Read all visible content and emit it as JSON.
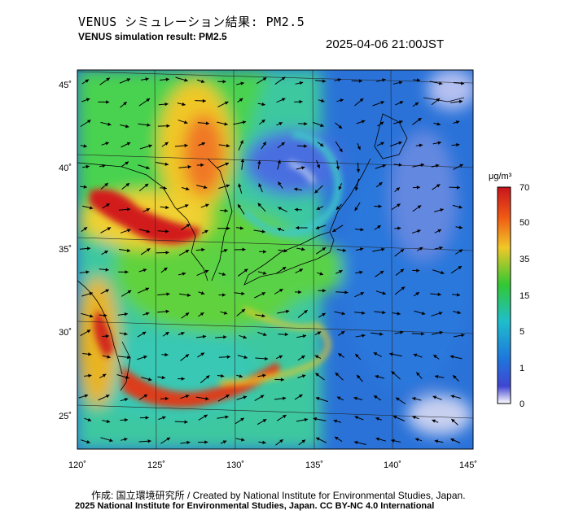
{
  "header": {
    "title_jp": "VENUS シミュレーション結果: PM2.5",
    "title_en": "VENUS simulation result: PM2.5",
    "timestamp": "2025-04-06 21:00JST"
  },
  "map": {
    "region": "East Asia / Japan",
    "lon_ticks": [
      "120˚",
      "125˚",
      "130˚",
      "135˚",
      "140˚",
      "145˚"
    ],
    "lat_ticks": [
      "45˚",
      "40˚",
      "35˚",
      "30˚",
      "25˚"
    ],
    "lon_range": [
      120,
      145
    ],
    "lat_range": [
      23,
      46
    ],
    "wind_vectors": "shown",
    "ocean_color": "#2a6fd8",
    "land_outline_color": "#000000"
  },
  "colorbar": {
    "unit": "μg/m³",
    "tick_labels": [
      "70",
      "50",
      "35",
      "15",
      "5",
      "1",
      "0"
    ],
    "colors": [
      "#c8141e",
      "#f05a14",
      "#f0c828",
      "#32c832",
      "#1ebecc",
      "#1e78dc",
      "#4046d2",
      "#ffffff"
    ]
  },
  "footer": {
    "credit": "作成: 国立環境研究所 / Created by National Institute for Environmental Studies, Japan.",
    "license": "2025 National Institute for Environmental Studies, Japan. CC BY-NC 4.0 International"
  }
}
